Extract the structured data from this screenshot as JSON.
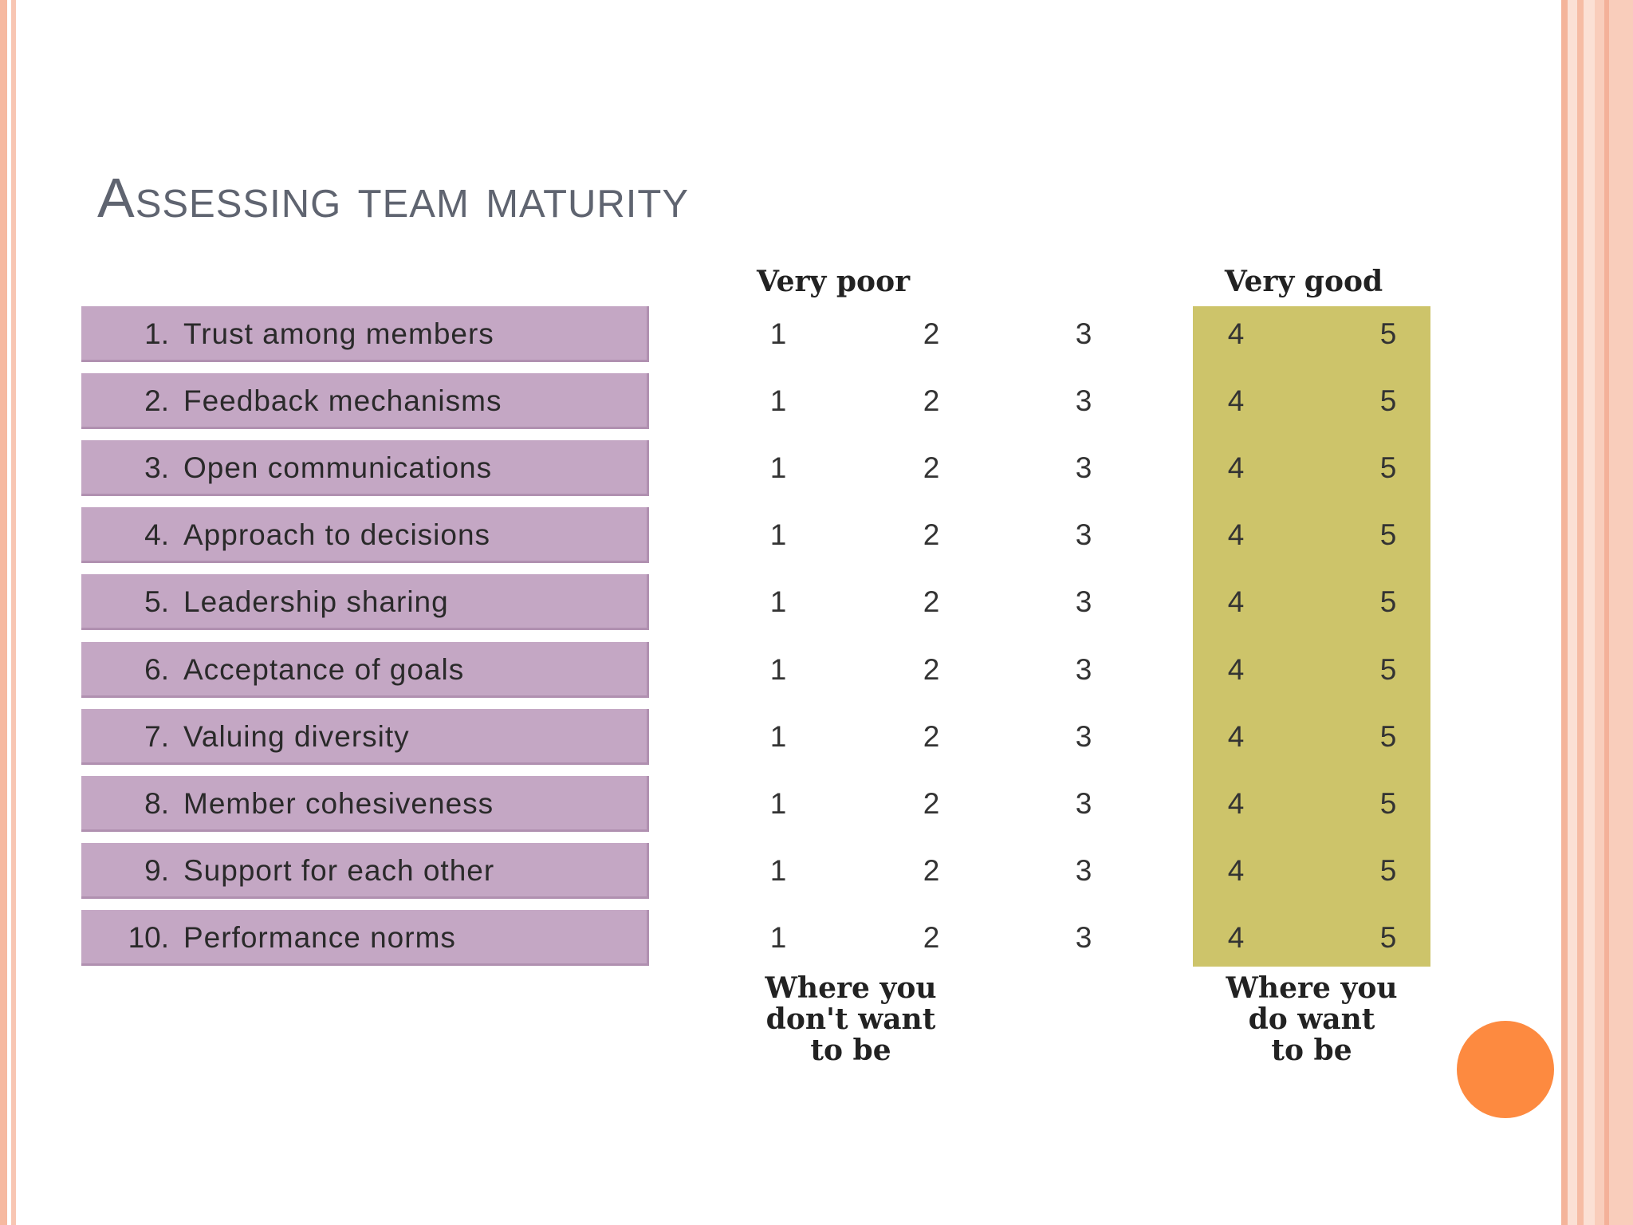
{
  "slide": {
    "title": "Assessing team maturity",
    "colors": {
      "item_fill": "#c4a7c4",
      "highlight_fill": "#cdc46a",
      "accent_circle": "#fd8a40",
      "border": "#f6b9a0"
    }
  },
  "figure": {
    "scale_left_label": "Very poor",
    "scale_right_label": "Very good",
    "items": [
      {
        "num": "1.",
        "label": "Trust among members",
        "scores": [
          "1",
          "2",
          "3",
          "4",
          "5"
        ]
      },
      {
        "num": "2.",
        "label": "Feedback mechanisms",
        "scores": [
          "1",
          "2",
          "3",
          "4",
          "5"
        ]
      },
      {
        "num": "3.",
        "label": "Open communications",
        "scores": [
          "1",
          "2",
          "3",
          "4",
          "5"
        ]
      },
      {
        "num": "4.",
        "label": "Approach to decisions",
        "scores": [
          "1",
          "2",
          "3",
          "4",
          "5"
        ]
      },
      {
        "num": "5.",
        "label": "Leadership sharing",
        "scores": [
          "1",
          "2",
          "3",
          "4",
          "5"
        ]
      },
      {
        "num": "6.",
        "label": "Acceptance of goals",
        "scores": [
          "1",
          "2",
          "3",
          "4",
          "5"
        ]
      },
      {
        "num": "7.",
        "label": "Valuing diversity",
        "scores": [
          "1",
          "2",
          "3",
          "4",
          "5"
        ]
      },
      {
        "num": "8.",
        "label": "Member cohesiveness",
        "scores": [
          "1",
          "2",
          "3",
          "4",
          "5"
        ]
      },
      {
        "num": "9.",
        "label": "Support for each other",
        "scores": [
          "1",
          "2",
          "3",
          "4",
          "5"
        ]
      },
      {
        "num": "10.",
        "label": "Performance norms",
        "scores": [
          "1",
          "2",
          "3",
          "4",
          "5"
        ]
      }
    ],
    "bottom_left_lines": [
      "Where you",
      "don't want",
      "to be"
    ],
    "bottom_right_lines": [
      "Where you",
      "do want",
      "to be"
    ]
  }
}
